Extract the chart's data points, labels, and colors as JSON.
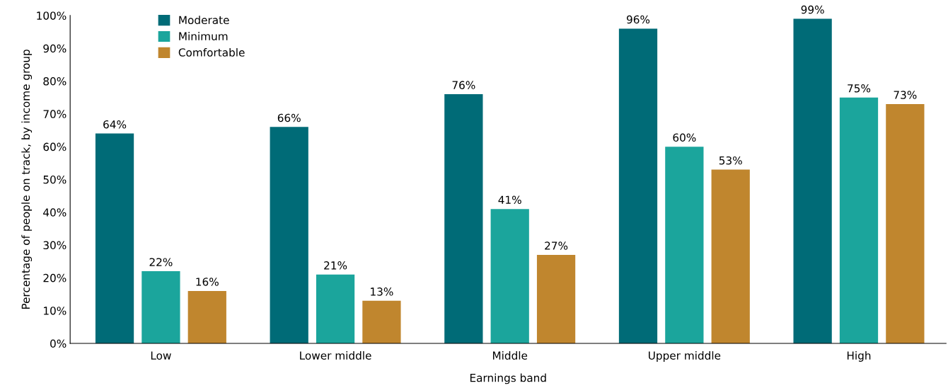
{
  "chart_data": {
    "type": "bar",
    "xlabel": "Earnings band",
    "ylabel": "Percentage of people on track, by income group",
    "categories": [
      "Low",
      "Lower middle",
      "Middle",
      "Upper middle",
      "High"
    ],
    "series": [
      {
        "name": "Moderate",
        "color": "#006b77",
        "values": [
          64,
          66,
          76,
          96,
          99
        ],
        "value_labels": [
          "64%",
          "66%",
          "76%",
          "96%",
          "99%"
        ]
      },
      {
        "name": "Minimum",
        "color": "#1ba59c",
        "values": [
          22,
          21,
          41,
          60,
          75
        ],
        "value_labels": [
          "22%",
          "21%",
          "41%",
          "60%",
          "75%"
        ]
      },
      {
        "name": "Comfortable",
        "color": "#c0862e",
        "values": [
          16,
          13,
          27,
          53,
          73
        ],
        "value_labels": [
          "16%",
          "13%",
          "27%",
          "53%",
          "73%"
        ]
      }
    ],
    "ylim": [
      0,
      100
    ],
    "yticks": [
      {
        "value": 0,
        "label": "0%"
      },
      {
        "value": 10,
        "label": "10%"
      },
      {
        "value": 20,
        "label": "20%"
      },
      {
        "value": 30,
        "label": "30%"
      },
      {
        "value": 40,
        "label": "40%"
      },
      {
        "value": 50,
        "label": "50%"
      },
      {
        "value": 60,
        "label": "60%"
      },
      {
        "value": 70,
        "label": "70%"
      },
      {
        "value": 80,
        "label": "80%"
      },
      {
        "value": 90,
        "label": "90%"
      },
      {
        "value": 100,
        "label": "100%"
      }
    ],
    "legend": "top left"
  }
}
